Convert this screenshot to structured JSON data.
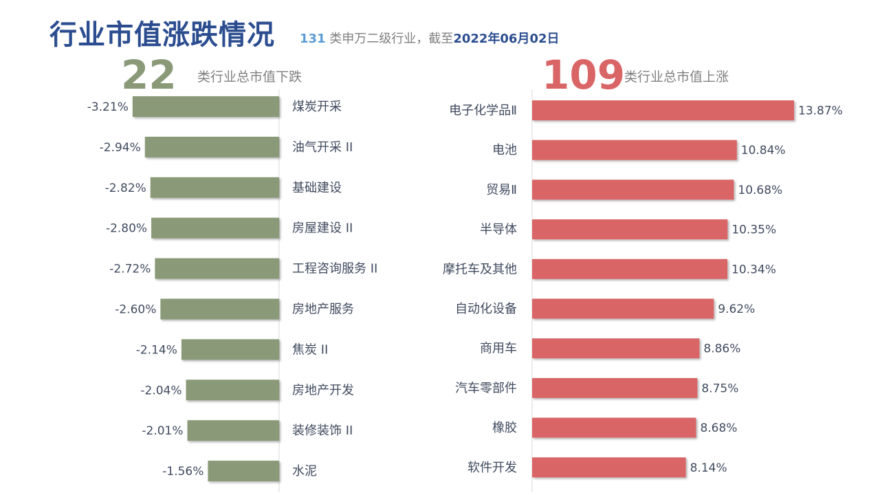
{
  "header": {
    "title": "行业市值涨跌情况",
    "subtitle_count": "131",
    "subtitle_mid": " 类申万二级行业，截至",
    "subtitle_date": "2022年06月02日"
  },
  "summary": {
    "down_count": "22",
    "down_label": "类行业总市值下跌",
    "up_count": "109",
    "up_label": "类行业总市值上涨"
  },
  "colors": {
    "down_bar": "#8a9a78",
    "up_bar": "#d96566",
    "title": "#2b4d8f",
    "axis": "#d9d9d9",
    "label_text": "#404a5e"
  },
  "chart_data": [
    {
      "type": "bar",
      "orientation": "horizontal",
      "title": "",
      "categories": [
        "煤炭开采",
        "油气开采 II",
        "基础建设",
        "房屋建设 II",
        "工程咨询服务 II",
        "房地产服务",
        "焦炭 II",
        "房地产开发",
        "装修装饰 II",
        "水泥"
      ],
      "values": [
        -3.21,
        -2.94,
        -2.82,
        -2.8,
        -2.72,
        -2.6,
        -2.14,
        -2.04,
        -2.01,
        -1.56
      ],
      "value_labels": [
        "-3.21%",
        "-2.94%",
        "-2.82%",
        "-2.80%",
        "-2.72%",
        "-2.60%",
        "-2.14%",
        "-2.04%",
        "-2.01%",
        "-1.56%"
      ],
      "unit": "%",
      "xlim": [
        -3.5,
        0
      ],
      "grid": false
    },
    {
      "type": "bar",
      "orientation": "horizontal",
      "title": "",
      "categories": [
        "电子化学品Ⅱ",
        "电池",
        "贸易Ⅱ",
        "半导体",
        "摩托车及其他",
        "自动化设备",
        "商用车",
        "汽车零部件",
        "橡胶",
        "软件开发"
      ],
      "values": [
        13.87,
        10.84,
        10.68,
        10.35,
        10.34,
        9.62,
        8.86,
        8.75,
        8.68,
        8.14
      ],
      "value_labels": [
        "13.87%",
        "10.84%",
        "10.68%",
        "10.35%",
        "10.34%",
        "9.62%",
        "8.86%",
        "8.75%",
        "8.68%",
        "8.14%"
      ],
      "unit": "%",
      "xlim": [
        0,
        13.87
      ],
      "grid": false
    }
  ]
}
